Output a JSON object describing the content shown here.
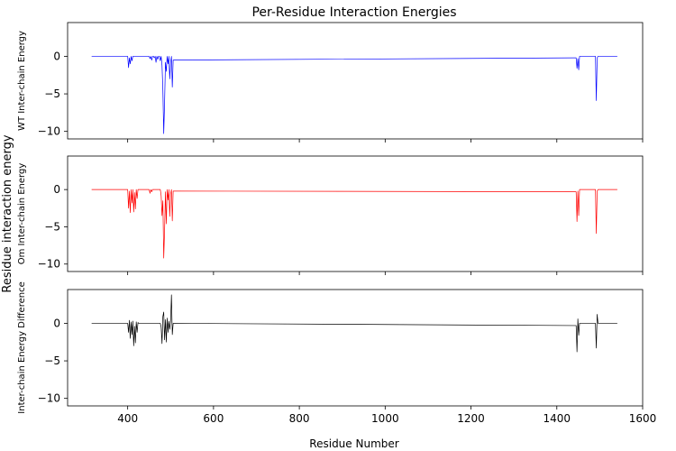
{
  "figure": {
    "title": "Per-Residue Interaction Energies",
    "shared_ylabel": "Residue interaction energy",
    "xlabel": "Residue Number"
  },
  "chart_data": [
    {
      "type": "line",
      "ylabel": "WT Inter-chain Energy",
      "color": "#0000ff",
      "xlim": [
        260,
        1600
      ],
      "ylim": [
        -11,
        4.5
      ],
      "xticks": [
        400,
        600,
        800,
        1000,
        1200,
        1400,
        1600
      ],
      "yticks": [
        0,
        -5,
        -10
      ],
      "show_xticklabels": false,
      "series": [
        {
          "x": [
            316,
            400,
            402,
            404,
            406,
            408,
            410,
            412,
            414,
            450,
            452,
            454,
            456,
            458,
            460,
            462,
            464,
            466,
            468,
            470,
            472,
            474,
            476,
            478,
            480,
            482,
            484,
            486,
            488,
            490,
            492,
            494,
            496,
            498,
            500,
            502,
            504,
            506,
            1445,
            1447,
            1449,
            1451,
            1453,
            1490,
            1492,
            1494,
            1496,
            1541
          ],
          "y": [
            0,
            0,
            -1.5,
            -0.2,
            -1.0,
            0,
            -0.6,
            0,
            0,
            0,
            -0.3,
            0,
            -0.5,
            0,
            0,
            -0.2,
            0,
            -0.8,
            0,
            -0.4,
            0,
            0,
            -0.6,
            0,
            -1.2,
            -4.5,
            -10.3,
            -6.2,
            -0.8,
            -2.0,
            0,
            -1.0,
            0,
            -3.0,
            -0.8,
            0,
            -4.1,
            -0.5,
            -0.2,
            -1.6,
            -0.3,
            -1.8,
            0,
            0,
            -5.9,
            -0.2,
            0,
            0
          ]
        }
      ]
    },
    {
      "type": "line",
      "ylabel": "Om Inter-chain Energy",
      "color": "#ff0000",
      "xlim": [
        260,
        1600
      ],
      "ylim": [
        -11,
        4.5
      ],
      "xticks": [
        400,
        600,
        800,
        1000,
        1200,
        1400,
        1600
      ],
      "yticks": [
        0,
        -5,
        -10
      ],
      "show_xticklabels": false,
      "series": [
        {
          "x": [
            316,
            400,
            402,
            404,
            406,
            408,
            410,
            412,
            414,
            416,
            418,
            420,
            422,
            424,
            426,
            450,
            452,
            454,
            456,
            458,
            476,
            478,
            480,
            482,
            484,
            486,
            488,
            490,
            492,
            494,
            496,
            498,
            500,
            502,
            504,
            506,
            1445,
            1447,
            1449,
            1451,
            1453,
            1490,
            1492,
            1494,
            1496,
            1541
          ],
          "y": [
            0,
            0,
            -2.5,
            -0.2,
            -3.1,
            0,
            -1.8,
            0,
            -3.0,
            -0.4,
            -2.6,
            0,
            -1.2,
            0,
            0,
            0,
            -0.5,
            0,
            -0.3,
            0,
            0,
            -0.8,
            -3.5,
            -1.5,
            -9.2,
            -5.5,
            -0.3,
            -4.6,
            0,
            -1.4,
            0,
            -3.6,
            -0.6,
            0,
            -4.2,
            -0.2,
            -0.3,
            -4.3,
            -0.2,
            -3.5,
            0,
            0,
            -5.9,
            -0.2,
            0,
            0
          ]
        }
      ]
    },
    {
      "type": "line",
      "ylabel": "Inter-chain Energy Difference",
      "color": "#000000",
      "xlim": [
        260,
        1600
      ],
      "ylim": [
        -11,
        4.5
      ],
      "xticks": [
        400,
        600,
        800,
        1000,
        1200,
        1400,
        1600
      ],
      "yticks": [
        0,
        -5,
        -10
      ],
      "show_xticklabels": true,
      "series": [
        {
          "x": [
            316,
            400,
            402,
            404,
            406,
            408,
            410,
            412,
            414,
            416,
            418,
            420,
            422,
            424,
            426,
            476,
            478,
            480,
            482,
            484,
            486,
            488,
            490,
            492,
            494,
            496,
            498,
            500,
            502,
            504,
            506,
            1445,
            1447,
            1449,
            1451,
            1453,
            1490,
            1492,
            1494,
            1496,
            1541
          ],
          "y": [
            0,
            0,
            -1.2,
            0.4,
            -2.0,
            0.2,
            -1.5,
            0.3,
            -3.0,
            -0.4,
            -2.6,
            0.2,
            -1.2,
            0.1,
            0,
            0,
            -0.5,
            -2.7,
            0.9,
            1.5,
            -2.2,
            0.5,
            -2.5,
            0.7,
            -1.2,
            0.3,
            -0.8,
            0.2,
            3.8,
            -1.5,
            0,
            -0.3,
            -3.8,
            0.6,
            -1.6,
            0,
            0,
            -3.3,
            1.2,
            0,
            0
          ]
        }
      ]
    }
  ]
}
